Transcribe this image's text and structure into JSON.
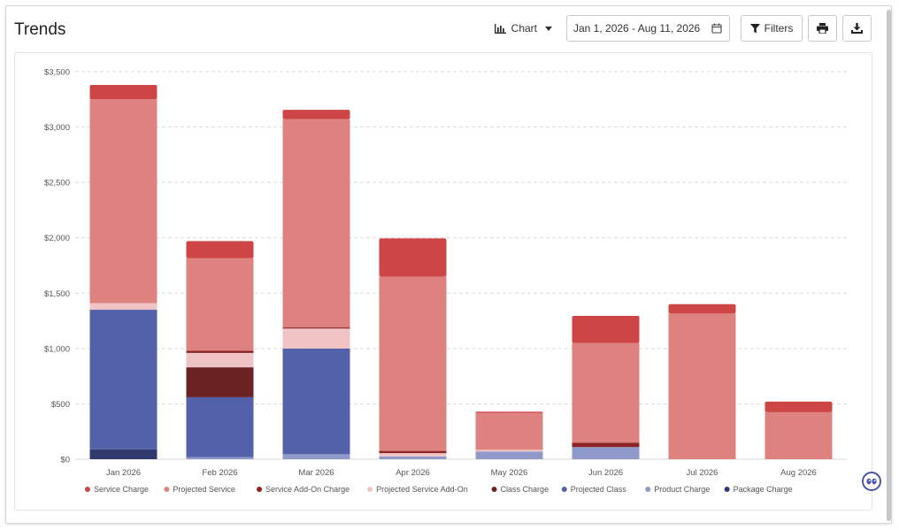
{
  "header": {
    "title": "Trends",
    "view_toggle_label": "Chart",
    "date_range": "Jan 1, 2026 - Aug 11, 2026",
    "filters_label": "Filters"
  },
  "colors": {
    "service_charge": "#cd4545",
    "projected_service": "#de827f",
    "service_addon_charge": "#8c2424",
    "projected_service_addon": "#f0c4c4",
    "class_charge": "#6b2222",
    "projected_class": "#5361aa",
    "product_charge": "#8f9acb",
    "package_charge": "#303a6c",
    "grid": "#dadada",
    "axis_text": "#555555"
  },
  "chart_data": {
    "type": "bar",
    "stacked": true,
    "categories": [
      "Jan 2026",
      "Feb 2026",
      "Mar 2026",
      "Apr 2026",
      "May 2026",
      "Jun 2026",
      "Jul 2026",
      "Aug 2026"
    ],
    "ylim": [
      0,
      3500
    ],
    "yticks": [
      0,
      500,
      1000,
      1500,
      2000,
      2500,
      3000,
      3500
    ],
    "ytick_labels": [
      "$0",
      "$500",
      "$1,000",
      "$1,500",
      "$2,000",
      "$2,500",
      "$3,000",
      "$3,500"
    ],
    "grid": true,
    "legend_position": "bottom",
    "series": [
      {
        "name": "Package Charge",
        "color_key": "package_charge",
        "values": [
          90,
          0,
          0,
          0,
          0,
          0,
          0,
          0
        ]
      },
      {
        "name": "Product Charge",
        "color_key": "product_charge",
        "values": [
          0,
          20,
          45,
          25,
          70,
          110,
          0,
          0
        ]
      },
      {
        "name": "Projected Class",
        "color_key": "projected_class",
        "values": [
          1260,
          540,
          955,
          0,
          0,
          0,
          0,
          0
        ]
      },
      {
        "name": "Class Charge",
        "color_key": "class_charge",
        "values": [
          0,
          270,
          0,
          0,
          0,
          0,
          0,
          0
        ]
      },
      {
        "name": "Projected Service Add-On",
        "color_key": "projected_service_addon",
        "values": [
          60,
          130,
          180,
          30,
          15,
          0,
          0,
          0
        ]
      },
      {
        "name": "Service Add-On Charge",
        "color_key": "service_addon_charge",
        "values": [
          0,
          20,
          10,
          20,
          0,
          40,
          0,
          0
        ]
      },
      {
        "name": "Projected Service",
        "color_key": "projected_service",
        "values": [
          1840,
          835,
          1880,
          1575,
          335,
          900,
          1315,
          425
        ]
      },
      {
        "name": "Service Charge",
        "color_key": "service_charge",
        "values": [
          130,
          155,
          85,
          345,
          10,
          245,
          85,
          95
        ]
      }
    ],
    "legend": [
      "Service Charge",
      "Projected Service",
      "Service Add-On Charge",
      "Projected Service Add-On",
      "Class Charge",
      "Projected Class",
      "Product Charge",
      "Package Charge"
    ]
  }
}
